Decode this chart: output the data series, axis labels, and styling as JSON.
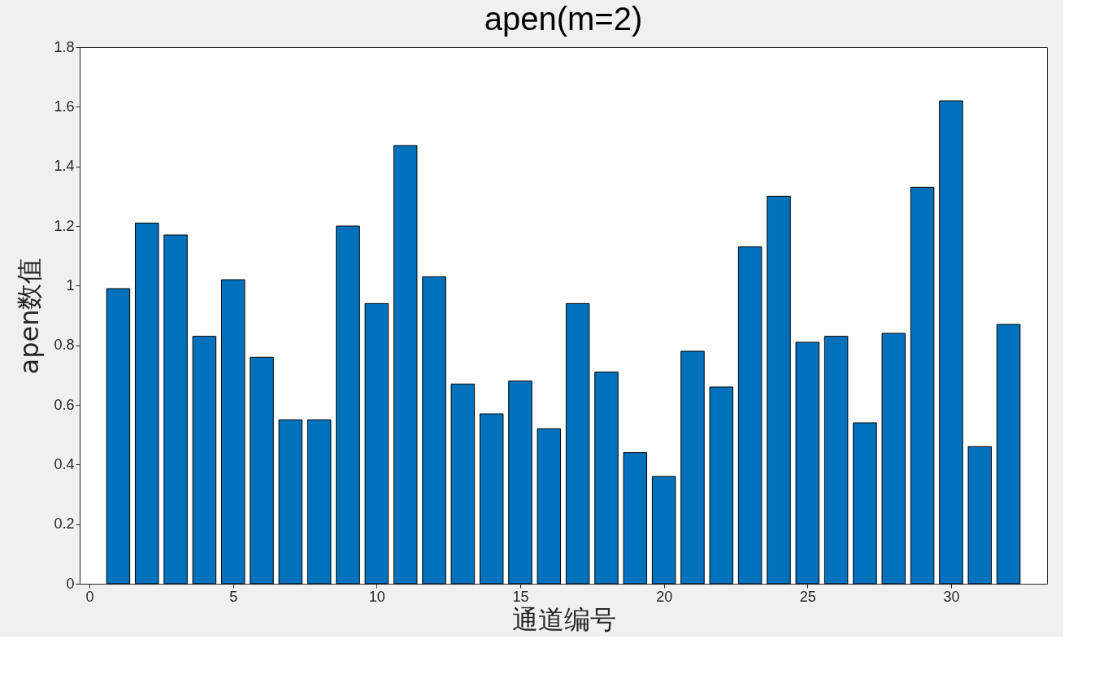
{
  "chart_data": {
    "type": "bar",
    "title": "apen(m=2)",
    "xlabel": "通道编号",
    "ylabel": "apen数值",
    "x": [
      1,
      2,
      3,
      4,
      5,
      6,
      7,
      8,
      9,
      10,
      11,
      12,
      13,
      14,
      15,
      16,
      17,
      18,
      19,
      20,
      21,
      22,
      23,
      24,
      25,
      26,
      27,
      28,
      29,
      30,
      31,
      32
    ],
    "values": [
      0.99,
      1.21,
      1.17,
      0.83,
      1.02,
      0.76,
      0.55,
      0.55,
      1.2,
      0.94,
      1.47,
      1.03,
      0.67,
      0.57,
      0.68,
      0.52,
      0.94,
      0.71,
      0.44,
      0.36,
      0.78,
      0.66,
      1.13,
      1.3,
      0.81,
      0.83,
      0.54,
      0.84,
      1.33,
      1.62,
      0.46,
      0.87
    ],
    "color": "#0072bd",
    "xlim": [
      -0.2,
      33.2
    ],
    "xticks": [
      0,
      5,
      10,
      15,
      20,
      25,
      30
    ],
    "ylim": [
      0,
      1.8
    ],
    "yticks": [
      0,
      0.2,
      0.4,
      0.6,
      0.8,
      1,
      1.2,
      1.4,
      1.6,
      1.8
    ],
    "grid": false
  }
}
